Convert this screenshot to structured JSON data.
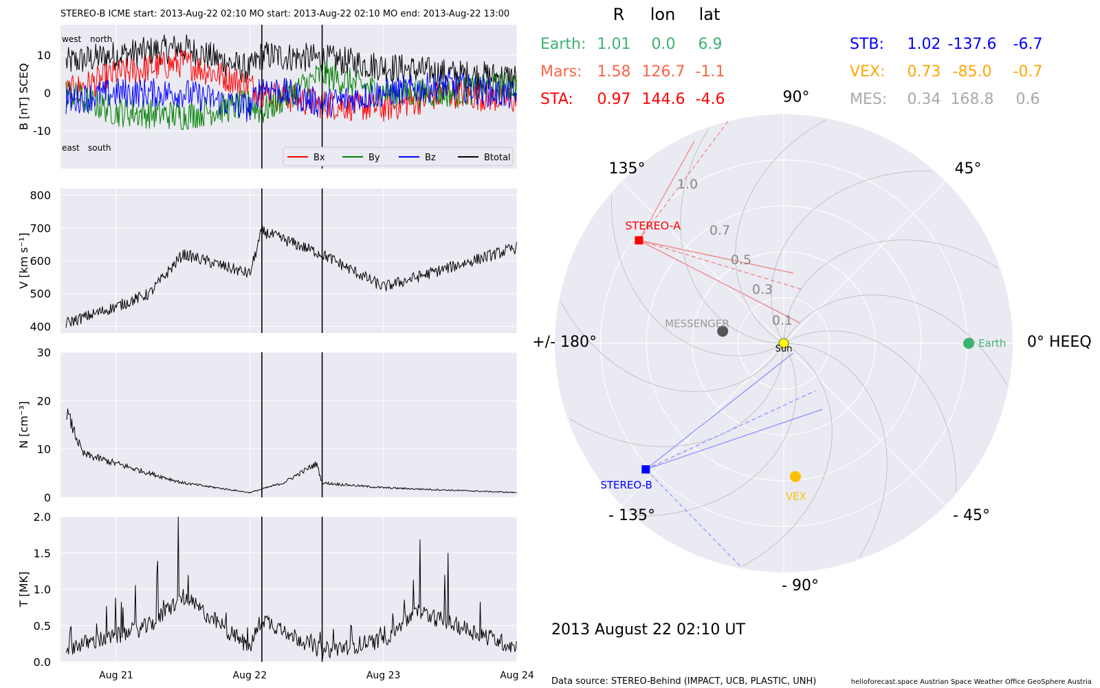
{
  "title": "STEREO-B    ICME start: 2013-Aug-22 02:10   MO start: 2013-Aug-22 02:10   MO end: 2013-Aug-22 13:00",
  "timeseries": {
    "x_tick_labels": [
      "Aug 21",
      "Aug 22",
      "Aug 23",
      "Aug 24"
    ],
    "event_lines": [
      "2013-08-22 02:10",
      "2013-08-22 13:00"
    ],
    "panels": [
      {
        "key": "B",
        "ylabel": "B [nT] SCEQ",
        "yticks": [
          -10,
          0,
          10
        ],
        "ylim": [
          -20,
          18
        ],
        "annotations": {
          "west": "west",
          "north": "north",
          "east": "east",
          "south": "south"
        },
        "legend": [
          {
            "name": "Bx",
            "color": "#ff0000"
          },
          {
            "name": "By",
            "color": "#008000"
          },
          {
            "name": "Bz",
            "color": "#0000ff"
          },
          {
            "name": "Btotal",
            "color": "#000000"
          }
        ]
      },
      {
        "key": "V",
        "ylabel": "V [km s⁻¹]",
        "yticks": [
          400,
          500,
          600,
          700,
          800
        ],
        "ylim": [
          380,
          820
        ]
      },
      {
        "key": "N",
        "ylabel": "N [cm⁻³]",
        "yticks": [
          0,
          10,
          20,
          30
        ],
        "ylim": [
          0,
          30
        ]
      },
      {
        "key": "T",
        "ylabel": "T [MK]",
        "yticks": [
          "0.0",
          "0.5",
          "1.0",
          "1.5",
          "2.0"
        ],
        "ylim": [
          0,
          2
        ]
      }
    ]
  },
  "positions": {
    "headers": [
      "R",
      "lon",
      "lat"
    ],
    "rows_left": [
      {
        "name": "Earth:",
        "r": "1.01",
        "lon": "0.0",
        "lat": "6.9",
        "color": "#3cb371"
      },
      {
        "name": "Mars:",
        "r": "1.58",
        "lon": "126.7",
        "lat": "-1.1",
        "color": "#ff6347"
      },
      {
        "name": "STA:",
        "r": "0.97",
        "lon": "144.6",
        "lat": "-4.6",
        "color": "#ff0000"
      }
    ],
    "rows_right": [
      {
        "name": "STB:",
        "r": "1.02",
        "lon": "-137.6",
        "lat": "-6.7",
        "color": "#0000ff"
      },
      {
        "name": "VEX:",
        "r": "0.73",
        "lon": "-85.0",
        "lat": "-0.7",
        "color": "#ffa500"
      },
      {
        "name": "MES:",
        "r": "0.34",
        "lon": "168.8",
        "lat": "0.6",
        "color": "#a9a9a9"
      }
    ]
  },
  "polar": {
    "angle_labels": {
      "a90": "90°",
      "a45": "45°",
      "a135": "135°",
      "a180": "+/- 180°",
      "a0": "0° HEEQ",
      "am45": "- 45°",
      "am135": "- 135°",
      "am90": "- 90°"
    },
    "radial_labels": [
      "0.1",
      "0.3",
      "0.5",
      "0.7",
      "1.0"
    ],
    "bodies": [
      {
        "name": "Sun",
        "r": 0.0,
        "lon": 0.0,
        "color": "#ffff00"
      },
      {
        "name": "Earth",
        "r": 1.01,
        "lon": 0.0,
        "color": "#3cb371"
      },
      {
        "name": "STEREO-A",
        "r": 0.97,
        "lon": 144.6,
        "color": "#ff0000"
      },
      {
        "name": "STEREO-B",
        "r": 1.02,
        "lon": -137.6,
        "color": "#0000ff"
      },
      {
        "name": "VEX",
        "r": 0.73,
        "lon": -85.0,
        "color": "#ffc000"
      },
      {
        "name": "MESSENGER",
        "r": 0.34,
        "lon": 168.8,
        "color": "#555555"
      }
    ]
  },
  "date_label": "2013 August 22  02:10 UT",
  "footer": {
    "source": "Data source: STEREO-Behind (IMPACT, UCB, PLASTIC, UNH)",
    "credits": "helioforecast.space   Austrian Space Weather Office   GeoSphere Austria"
  },
  "chart_data": [
    {
      "type": "line",
      "title": "STEREO-B    ICME start: 2013-Aug-22 02:10   MO start: 2013-Aug-22 02:10   MO end: 2013-Aug-22 13:00",
      "ylabel": "B [nT] SCEQ",
      "ylim": [
        -20,
        18
      ],
      "x": [
        "2013-08-20 15:00",
        "2013-08-21 00:00",
        "2013-08-21 12:00",
        "2013-08-22 00:00",
        "2013-08-22 02:10",
        "2013-08-22 13:00",
        "2013-08-23 00:00",
        "2013-08-23 12:00",
        "2013-08-24 00:00"
      ],
      "series": [
        {
          "name": "Btotal",
          "values": [
            8,
            10,
            12,
            6,
            10,
            9,
            7,
            5,
            4
          ]
        },
        {
          "name": "Bx",
          "values": [
            0,
            5,
            8,
            2,
            0,
            -3,
            -4,
            0,
            -2
          ]
        },
        {
          "name": "By",
          "values": [
            0,
            -5,
            -6,
            -3,
            -5,
            5,
            0,
            0,
            2
          ]
        },
        {
          "name": "Bz",
          "values": [
            -2,
            0,
            0,
            -4,
            2,
            -3,
            0,
            2,
            -1
          ]
        }
      ]
    },
    {
      "type": "line",
      "ylabel": "V [km s⁻¹]",
      "ylim": [
        380,
        820
      ],
      "x": [
        "2013-08-20 15:00",
        "2013-08-21 00:00",
        "2013-08-21 06:00",
        "2013-08-21 12:00",
        "2013-08-22 00:00",
        "2013-08-22 02:10",
        "2013-08-22 13:00",
        "2013-08-23 00:00",
        "2013-08-23 12:00",
        "2013-08-24 00:00"
      ],
      "series": [
        {
          "name": "V",
          "values": [
            410,
            460,
            500,
            620,
            560,
            690,
            620,
            520,
            580,
            640
          ]
        }
      ]
    },
    {
      "type": "line",
      "ylabel": "N [cm⁻³]",
      "ylim": [
        0,
        30
      ],
      "x": [
        "2013-08-20 15:00",
        "2013-08-20 18:00",
        "2013-08-21 00:00",
        "2013-08-21 12:00",
        "2013-08-22 00:00",
        "2013-08-22 06:00",
        "2013-08-22 12:00",
        "2013-08-22 13:00",
        "2013-08-23 00:00",
        "2013-08-24 00:00"
      ],
      "series": [
        {
          "name": "N",
          "values": [
            18,
            9,
            7,
            3,
            1,
            3,
            7,
            3,
            2,
            1
          ]
        }
      ]
    },
    {
      "type": "line",
      "ylabel": "T [MK]",
      "ylim": [
        0,
        2
      ],
      "x": [
        "2013-08-20 15:00",
        "2013-08-21 00:00",
        "2013-08-21 06:00",
        "2013-08-21 12:00",
        "2013-08-22 00:00",
        "2013-08-22 02:10",
        "2013-08-22 13:00",
        "2013-08-23 00:00",
        "2013-08-23 06:00",
        "2013-08-24 00:00"
      ],
      "series": [
        {
          "name": "T",
          "values": [
            0.2,
            0.35,
            0.5,
            0.9,
            0.2,
            0.6,
            0.15,
            0.3,
            0.7,
            0.2
          ]
        }
      ]
    }
  ]
}
